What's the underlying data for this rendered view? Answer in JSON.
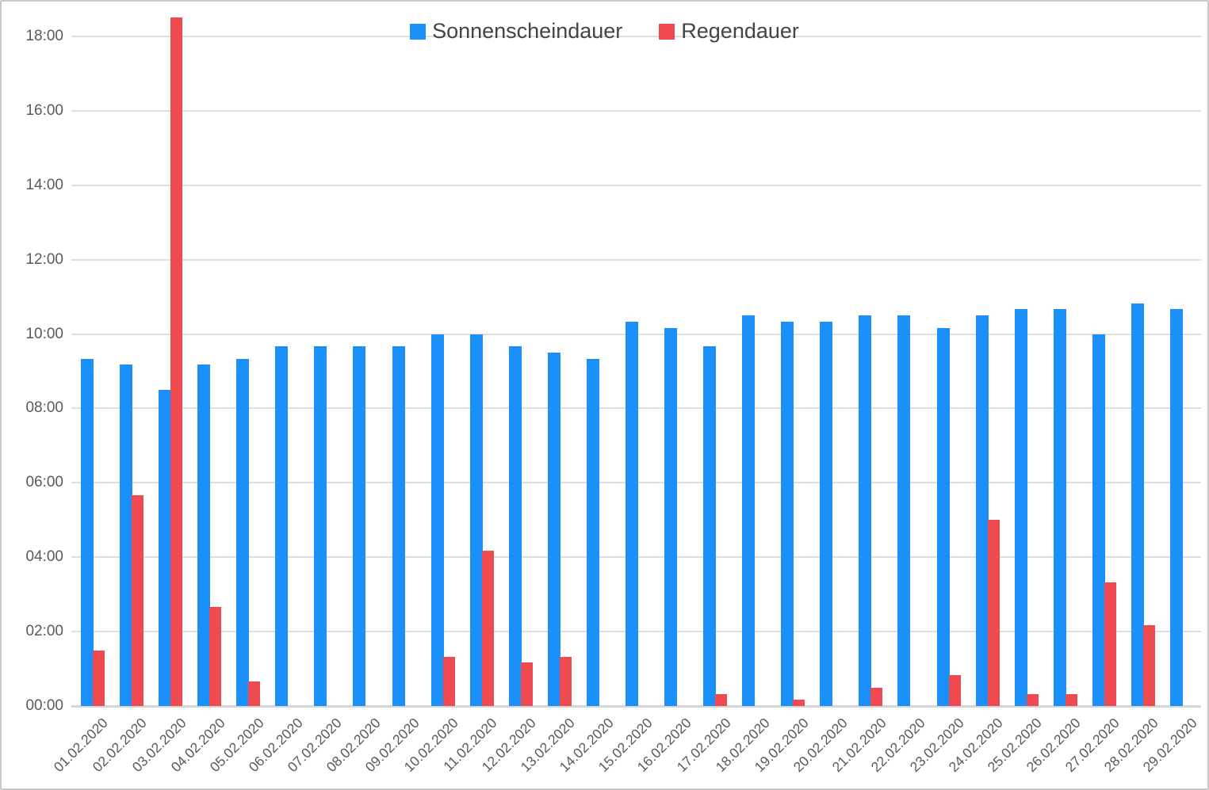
{
  "chart_data": {
    "type": "bar",
    "title": "",
    "legend_position": "top-center",
    "grid": true,
    "categories": [
      "01.02.2020",
      "02.02.2020",
      "03.02.2020",
      "04.02.2020",
      "05.02.2020",
      "06.02.2020",
      "07.02.2020",
      "08.02.2020",
      "09.02.2020",
      "10.02.2020",
      "11.02.2020",
      "12.02.2020",
      "13.02.2020",
      "14.02.2020",
      "15.02.2020",
      "16.02.2020",
      "17.02.2020",
      "18.02.2020",
      "19.02.2020",
      "20.02.2020",
      "21.02.2020",
      "22.02.2020",
      "23.02.2020",
      "24.02.2020",
      "25.02.2020",
      "26.02.2020",
      "27.02.2020",
      "28.02.2020",
      "29.02.2020"
    ],
    "series": [
      {
        "name": "Sonnenscheindauer",
        "color": "#1b90fb",
        "values_hours": [
          9.33,
          9.17,
          8.5,
          9.17,
          9.33,
          9.67,
          9.67,
          9.67,
          9.67,
          10,
          10,
          9.67,
          9.5,
          9.33,
          10.33,
          10.17,
          9.67,
          10.5,
          10.33,
          10.33,
          10.5,
          10.5,
          10.17,
          10.5,
          10.67,
          10.67,
          10,
          10.83,
          10.67
        ],
        "values_hhmm": [
          "09:20",
          "09:10",
          "08:30",
          "09:10",
          "09:20",
          "09:40",
          "09:40",
          "09:40",
          "09:40",
          "10:00",
          "10:00",
          "09:40",
          "09:30",
          "09:20",
          "10:20",
          "10:10",
          "09:40",
          "10:30",
          "10:20",
          "10:20",
          "10:30",
          "10:30",
          "10:10",
          "10:30",
          "10:40",
          "10:40",
          "10:00",
          "10:50",
          "10:40"
        ]
      },
      {
        "name": "Regendauer",
        "color": "#ef4a50",
        "values_hours": [
          1.5,
          5.67,
          18.5,
          2.67,
          0.67,
          0,
          0,
          0,
          0,
          1.33,
          4.17,
          1.17,
          1.33,
          0,
          0,
          0,
          0.33,
          0,
          0.17,
          0,
          0.5,
          0,
          0.83,
          5,
          0.33,
          0.33,
          3.33,
          2.17,
          0
        ],
        "values_hhmm": [
          "01:30",
          "05:40",
          "18:30",
          "02:40",
          "00:40",
          "00:00",
          "00:00",
          "00:00",
          "00:00",
          "01:20",
          "04:10",
          "01:10",
          "01:20",
          "00:00",
          "00:00",
          "00:00",
          "00:20",
          "00:00",
          "00:10",
          "00:00",
          "00:30",
          "00:00",
          "00:50",
          "05:00",
          "00:20",
          "00:20",
          "03:20",
          "02:10",
          "00:00"
        ]
      }
    ],
    "y_axis": {
      "format": "HH:MM",
      "min_hours": 0,
      "max_hours": 18,
      "tick_interval_hours": 2,
      "tick_labels_bottom_up": [
        "00:00",
        "02:00",
        "04:00",
        "06:00",
        "08:00",
        "10:00",
        "12:00",
        "14:00",
        "16:00",
        "18:00"
      ]
    }
  }
}
